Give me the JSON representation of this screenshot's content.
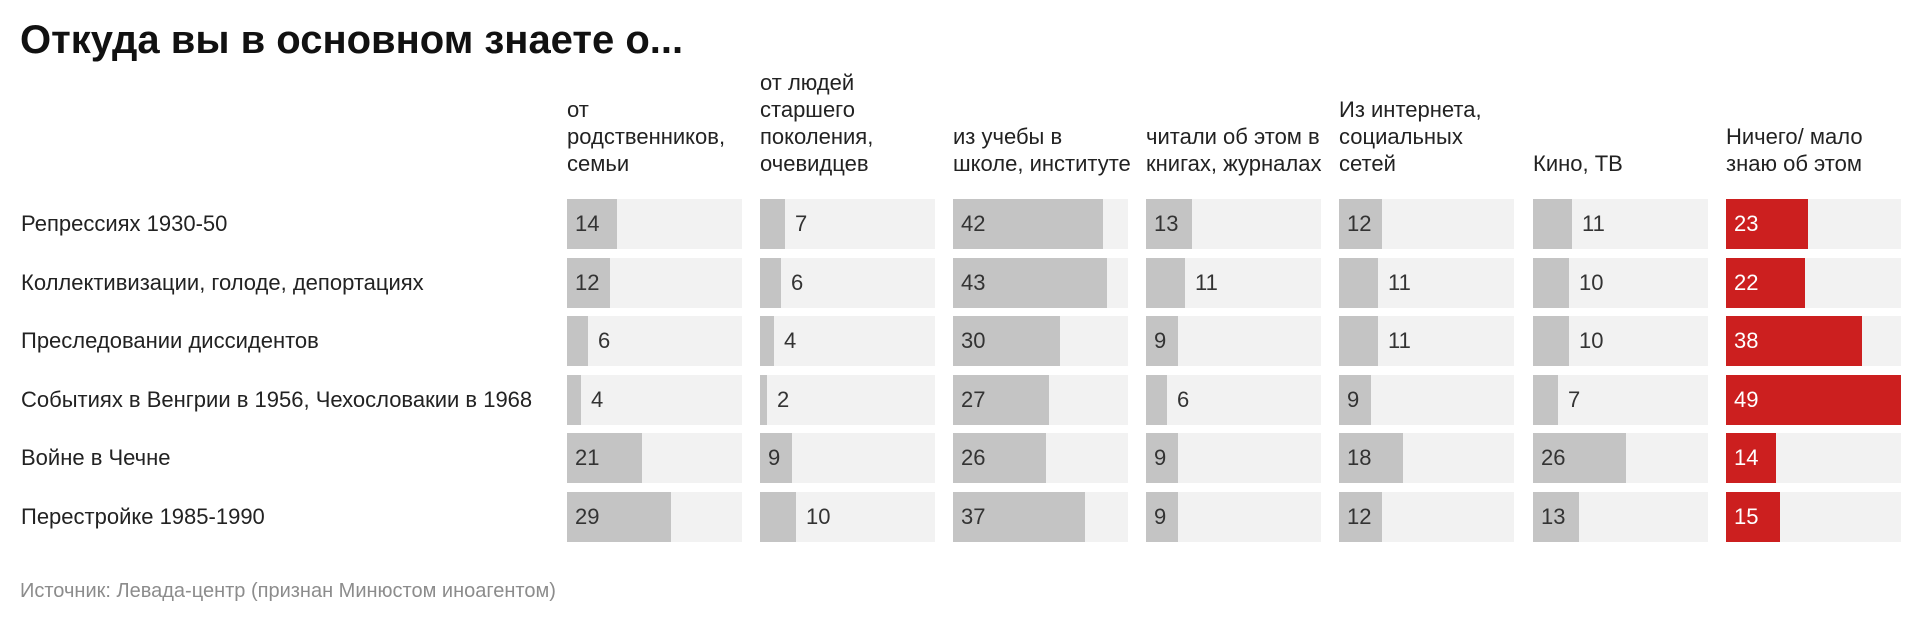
{
  "title": "Откуда вы в основном знаете о...",
  "footer": "Источник: Левада-центр (признан Минюстом иноагентом)",
  "colors": {
    "bar": "#c4c4c4",
    "accent": "#cc1f1f",
    "background_cell": "#f2f2f2"
  },
  "chart_data": {
    "type": "table",
    "title": "Откуда вы в основном знаете о...",
    "columns": [
      {
        "label": "от родственников, семьи",
        "accent": false
      },
      {
        "label": "от людей старшего поколения, очевидцев",
        "accent": false
      },
      {
        "label": "из учебы в школе, институте",
        "accent": false
      },
      {
        "label": "читали об этом в книгах, журналах",
        "accent": false
      },
      {
        "label": "Из интернета, социальных сетей",
        "accent": false
      },
      {
        "label": "Кино, ТВ",
        "accent": false
      },
      {
        "label": "Ничего/ мало знаю об этом",
        "accent": true
      }
    ],
    "rows": [
      {
        "label": "Репрессиях 1930-50",
        "values": [
          14,
          7,
          42,
          13,
          12,
          11,
          23
        ]
      },
      {
        "label": "Коллективизации, голоде, депортациях",
        "values": [
          12,
          6,
          43,
          11,
          11,
          10,
          22
        ]
      },
      {
        "label": "Преследовании диссидентов",
        "values": [
          6,
          4,
          30,
          9,
          11,
          10,
          38
        ]
      },
      {
        "label": "Событиях в Венгрии в 1956, Чехословакии в 1968",
        "values": [
          4,
          2,
          27,
          6,
          9,
          7,
          49
        ]
      },
      {
        "label": "Войне в Чечне",
        "values": [
          21,
          9,
          26,
          9,
          18,
          26,
          14
        ]
      },
      {
        "label": "Перестройке 1985-1990",
        "values": [
          29,
          10,
          37,
          9,
          12,
          13,
          15
        ]
      }
    ],
    "max_value": 49
  }
}
